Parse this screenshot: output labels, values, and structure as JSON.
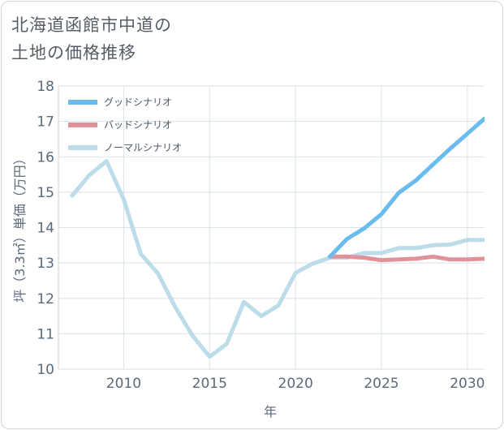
{
  "title_line1": "北海道函館市中道の",
  "title_line2": "土地の価格推移",
  "chart_data": {
    "type": "line",
    "xlabel": "年",
    "ylabel": "坪（3.3㎡）単価（万円）",
    "xlim": [
      2006.2,
      2031
    ],
    "ylim": [
      10,
      18
    ],
    "x_ticks": [
      2010,
      2015,
      2020,
      2025,
      2030
    ],
    "y_ticks": [
      10,
      11,
      12,
      13,
      14,
      15,
      16,
      17,
      18
    ],
    "grid": true,
    "legend_position": "top-left",
    "series": [
      {
        "name": "グッドシナリオ",
        "color": "#6bbcee",
        "x": [
          2022,
          2023,
          2024,
          2025,
          2026,
          2027,
          2028,
          2029,
          2030,
          2031
        ],
        "y": [
          13.18,
          13.68,
          13.98,
          14.38,
          14.98,
          15.33,
          15.78,
          16.23,
          16.65,
          17.08
        ]
      },
      {
        "name": "バッドシナリオ",
        "color": "#e0929b",
        "x": [
          2022,
          2023,
          2024,
          2025,
          2026,
          2027,
          2028,
          2029,
          2030,
          2031
        ],
        "y": [
          13.18,
          13.18,
          13.15,
          13.08,
          13.1,
          13.12,
          13.18,
          13.1,
          13.1,
          13.12
        ]
      },
      {
        "name": "ノーマルシナリオ",
        "color": "#bcdcea",
        "x": [
          2007,
          2008,
          2009,
          2010,
          2011,
          2012,
          2013,
          2014,
          2015,
          2016,
          2017,
          2018,
          2019,
          2020,
          2021,
          2022,
          2023,
          2024,
          2025,
          2026,
          2027,
          2028,
          2029,
          2030,
          2031
        ],
        "y": [
          14.9,
          15.48,
          15.88,
          14.8,
          13.25,
          12.7,
          11.75,
          10.95,
          10.35,
          10.72,
          11.9,
          11.5,
          11.8,
          12.72,
          12.98,
          13.15,
          13.15,
          13.28,
          13.28,
          13.42,
          13.42,
          13.5,
          13.52,
          13.65,
          13.65
        ]
      }
    ]
  }
}
